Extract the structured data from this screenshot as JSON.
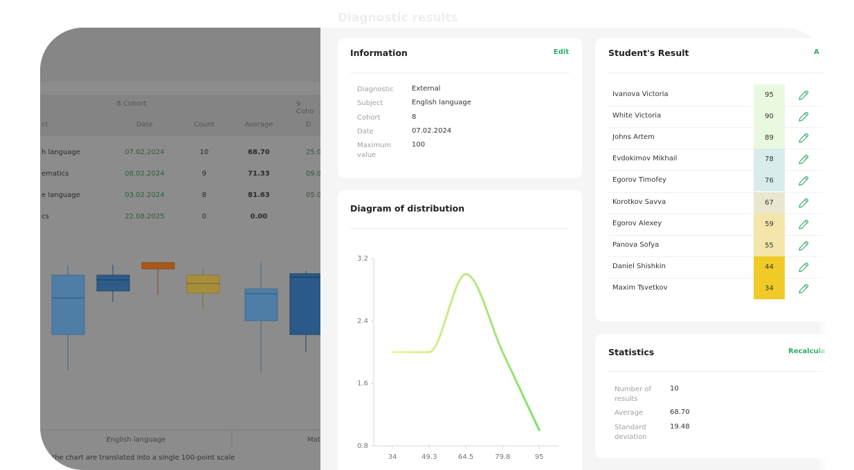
{
  "panel_title": "Diagnostic results",
  "background_page": {
    "table": {
      "group_headers": [
        "8 Cohort",
        "9 Coho"
      ],
      "headers": [
        "ct",
        "Date",
        "Count",
        "Average",
        "D"
      ],
      "rows": [
        [
          "h language",
          "07.02.2024",
          "10",
          "68.70",
          "25.0"
        ],
        [
          "ematics",
          "08.02.2024",
          "9",
          "71.33",
          "09.0"
        ],
        [
          "e language",
          "03.02.2024",
          "8",
          "81.63",
          "05.0"
        ],
        [
          "cs",
          "22.08.2025",
          "0",
          "0.00",
          ""
        ]
      ]
    },
    "chart_labels": [
      "English language",
      "Mat"
    ],
    "footnote": "r the chart are translated into a single 100-point scale"
  },
  "information": {
    "title": "Information",
    "action": "Edit",
    "fields": [
      {
        "label": "Diagnostic",
        "value": "External"
      },
      {
        "label": "Subject",
        "value": "English language"
      },
      {
        "label": "Cohort",
        "value": "8"
      },
      {
        "label": "Date",
        "value": "07.02.2024"
      },
      {
        "label": "Maximum value",
        "value": "100"
      }
    ]
  },
  "chart_data": {
    "type": "line",
    "title": "Diagram of distribution",
    "x": [
      34,
      49.3,
      64.5,
      79.8,
      95
    ],
    "values": [
      2.0,
      2.0,
      3.0,
      2.0,
      1.0
    ],
    "xlim": [
      26.2,
      103.0
    ],
    "xticks": [
      34,
      49.3,
      64.5,
      79.8,
      95
    ],
    "ylim": [
      0.8,
      3.2
    ],
    "yticks": [
      0.8,
      1.6,
      2.4,
      3.2
    ],
    "colors": [
      "#f7f39c",
      "#7ddf66"
    ]
  },
  "students": {
    "title": "Student's Result",
    "action": "A",
    "rows": [
      {
        "name": "Ivanova Victoria",
        "score": 95
      },
      {
        "name": "White Victoria",
        "score": 90
      },
      {
        "name": "Johns Artem",
        "score": 89
      },
      {
        "name": "Evdokimov Mikhail",
        "score": 78
      },
      {
        "name": "Egorov Timofey",
        "score": 76
      },
      {
        "name": "Korotkov Savva",
        "score": 67
      },
      {
        "name": "Egorov Alexey",
        "score": 59
      },
      {
        "name": "Panova Sofya",
        "score": 55
      },
      {
        "name": "Daniel Shishkin",
        "score": 44
      },
      {
        "name": "Maxim Tsvetkov",
        "score": 34
      }
    ]
  },
  "statistics": {
    "title": "Statistics",
    "action": "Recalcula",
    "fields": [
      {
        "label": "Number of results",
        "value": "10"
      },
      {
        "label": "Average",
        "value": "68.70"
      },
      {
        "label": "Standard deviation",
        "value": "19.48"
      }
    ]
  }
}
